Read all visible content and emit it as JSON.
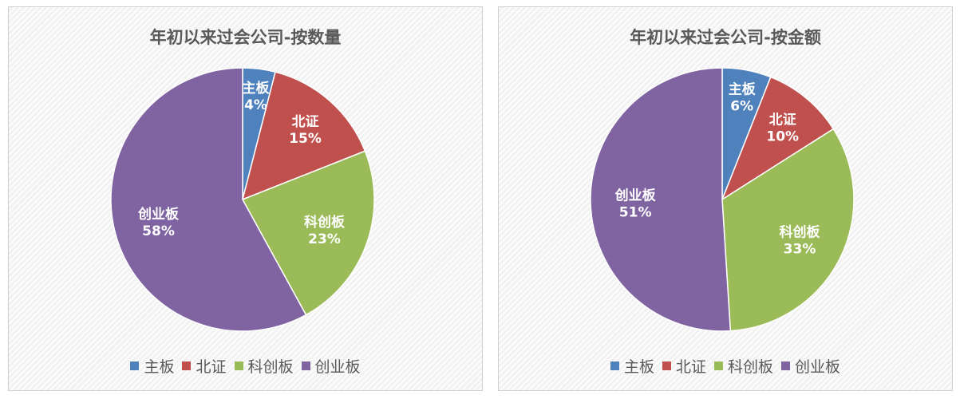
{
  "chart_data": [
    {
      "type": "pie",
      "title": "年初以来过会公司-按数量",
      "categories": [
        "主板",
        "北证",
        "科创板",
        "创业板"
      ],
      "values": [
        4,
        15,
        23,
        58
      ],
      "value_labels": [
        "4%",
        "15%",
        "23%",
        "58%"
      ],
      "colors": [
        "#4f81bd",
        "#c0504d",
        "#9bbb59",
        "#8064a2"
      ],
      "legend": "bottom"
    },
    {
      "type": "pie",
      "title": "年初以来过会公司-按金额",
      "categories": [
        "主板",
        "北证",
        "科创板",
        "创业板"
      ],
      "values": [
        6,
        10,
        33,
        51
      ],
      "value_labels": [
        "6%",
        "10%",
        "33%",
        "51%"
      ],
      "colors": [
        "#4f81bd",
        "#c0504d",
        "#9bbb59",
        "#8064a2"
      ],
      "legend": "bottom"
    }
  ]
}
